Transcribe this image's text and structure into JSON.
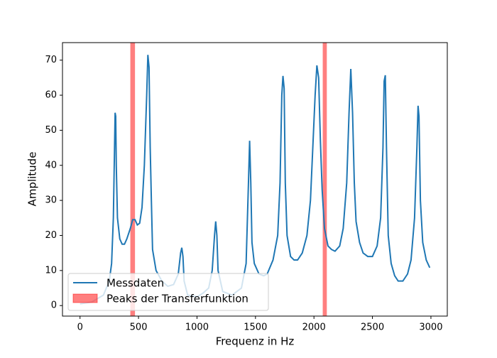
{
  "chart_data": {
    "type": "line",
    "xlabel": "Frequenz in Hz",
    "ylabel": "Amplitude",
    "x": [
      0,
      100,
      200,
      250,
      270,
      285,
      295,
      300,
      305,
      310,
      320,
      340,
      360,
      380,
      400,
      430,
      450,
      470,
      490,
      510,
      530,
      550,
      570,
      580,
      590,
      600,
      610,
      620,
      650,
      700,
      750,
      800,
      840,
      860,
      870,
      880,
      890,
      920,
      1000,
      1050,
      1100,
      1130,
      1150,
      1160,
      1170,
      1180,
      1220,
      1300,
      1380,
      1420,
      1440,
      1450,
      1460,
      1470,
      1490,
      1530,
      1570,
      1600,
      1650,
      1690,
      1710,
      1725,
      1735,
      1745,
      1755,
      1770,
      1800,
      1830,
      1860,
      1900,
      1940,
      1970,
      1990,
      2010,
      2025,
      2040,
      2055,
      2070,
      2090,
      2120,
      2150,
      2180,
      2220,
      2250,
      2280,
      2300,
      2315,
      2330,
      2345,
      2360,
      2390,
      2420,
      2460,
      2500,
      2540,
      2570,
      2590,
      2600,
      2610,
      2620,
      2635,
      2660,
      2690,
      2720,
      2760,
      2800,
      2830,
      2860,
      2880,
      2890,
      2898,
      2910,
      2930,
      2960,
      2990
    ],
    "series": [
      {
        "name": "Messdaten",
        "color": "#1f77b4",
        "values": [
          0.5,
          1,
          3,
          7,
          12,
          25,
          45,
          55,
          54,
          40,
          25,
          19,
          17.5,
          17.5,
          19,
          22,
          24.5,
          24.5,
          23,
          23.5,
          28,
          40,
          60,
          71.5,
          68,
          45,
          30,
          16,
          10,
          7,
          5.5,
          6,
          9,
          15,
          16.5,
          14,
          7,
          3,
          2.5,
          3.5,
          5,
          10,
          20,
          24,
          20,
          10,
          4,
          3,
          5,
          12,
          35,
          47,
          35,
          18,
          12,
          9,
          8.5,
          9,
          13,
          20,
          35,
          60,
          65.5,
          62,
          35,
          20,
          14,
          13,
          13,
          15,
          20,
          30,
          45,
          60,
          68.5,
          65,
          47,
          33,
          22,
          17,
          16,
          15.5,
          17,
          22,
          35,
          55,
          67.5,
          55,
          35,
          24,
          18,
          15,
          14,
          14,
          17,
          25,
          45,
          64,
          65.7,
          45,
          20,
          12,
          8.5,
          7,
          7,
          9,
          13,
          25,
          45,
          57,
          54,
          30,
          18,
          13,
          10.8
        ]
      }
    ],
    "spans": {
      "name": "Peaks der Transferfunktion",
      "color": "#ff0000",
      "ranges": [
        [
          430,
          470
        ],
        [
          2075,
          2110
        ]
      ]
    },
    "xlim": [
      -150,
      3140
    ],
    "ylim": [
      -3,
      75
    ],
    "xticks": [
      0,
      500,
      1000,
      1500,
      2000,
      2500,
      3000
    ],
    "yticks": [
      0,
      10,
      20,
      30,
      40,
      50,
      60,
      70
    ],
    "legend": "lower left"
  }
}
